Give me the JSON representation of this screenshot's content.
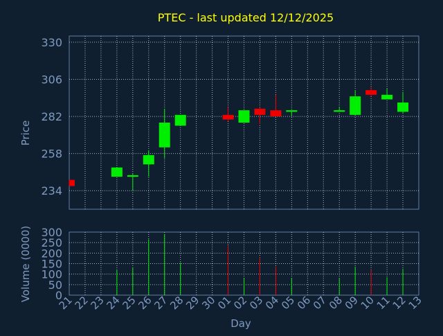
{
  "chart_data": {
    "type": "candlestick",
    "title": "PTEC - last updated 12/12/2025",
    "xlabel": "Day",
    "colors": {
      "background": "#0f1f30",
      "frame": "#5f7fa6",
      "axis_text": "#7f9ac0",
      "title": "#ffff00",
      "grid": "#cfdcea",
      "up": "#00ee00",
      "down": "#ee0000"
    },
    "price_panel": {
      "ylabel": "Price",
      "ylim": [
        222,
        334
      ],
      "yticks": [
        234,
        258,
        282,
        306,
        330
      ]
    },
    "volume_panel": {
      "ylabel": "Volume (0000)",
      "ylim": [
        0,
        300
      ],
      "yticks": [
        0,
        50,
        100,
        150,
        200,
        250,
        300
      ]
    },
    "days": [
      "21",
      "22",
      "23",
      "24",
      "25",
      "26",
      "27",
      "28",
      "29",
      "30",
      "01",
      "02",
      "03",
      "04",
      "05",
      "06",
      "07",
      "08",
      "09",
      "10",
      "11",
      "12",
      "13"
    ],
    "candles": [
      {
        "day": "21",
        "open": 241,
        "high": 241,
        "low": 237,
        "close": 237,
        "volume": 0,
        "dir": "down"
      },
      {
        "day": "24",
        "open": 243,
        "high": 249,
        "low": 243,
        "close": 249,
        "volume": 120,
        "dir": "up"
      },
      {
        "day": "25",
        "open": 243,
        "high": 245,
        "low": 234,
        "close": 244,
        "volume": 130,
        "dir": "up"
      },
      {
        "day": "26",
        "open": 251,
        "high": 260,
        "low": 243,
        "close": 257,
        "volume": 265,
        "dir": "up"
      },
      {
        "day": "27",
        "open": 262,
        "high": 287,
        "low": 255,
        "close": 278,
        "volume": 290,
        "dir": "up"
      },
      {
        "day": "28",
        "open": 276,
        "high": 283,
        "low": 276,
        "close": 283,
        "volume": 155,
        "dir": "up"
      },
      {
        "day": "01",
        "open": 283,
        "high": 288,
        "low": 279,
        "close": 280,
        "volume": 235,
        "dir": "down"
      },
      {
        "day": "02",
        "open": 278,
        "high": 286,
        "low": 278,
        "close": 286,
        "volume": 80,
        "dir": "up"
      },
      {
        "day": "03",
        "open": 287,
        "high": 288,
        "low": 277,
        "close": 283,
        "volume": 180,
        "dir": "down"
      },
      {
        "day": "04",
        "open": 286,
        "high": 296,
        "low": 282,
        "close": 282,
        "volume": 135,
        "dir": "down"
      },
      {
        "day": "05",
        "open": 285,
        "high": 286,
        "low": 282,
        "close": 286,
        "volume": 80,
        "dir": "up"
      },
      {
        "day": "08",
        "open": 285,
        "high": 288,
        "low": 285,
        "close": 286,
        "volume": 80,
        "dir": "up"
      },
      {
        "day": "09",
        "open": 283,
        "high": 299,
        "low": 283,
        "close": 295,
        "volume": 135,
        "dir": "up"
      },
      {
        "day": "10",
        "open": 299,
        "high": 301,
        "low": 295,
        "close": 296,
        "volume": 120,
        "dir": "down"
      },
      {
        "day": "11",
        "open": 293,
        "high": 300,
        "low": 293,
        "close": 296,
        "volume": 85,
        "dir": "up"
      },
      {
        "day": "12",
        "open": 285,
        "high": 298,
        "low": 284,
        "close": 291,
        "volume": 125,
        "dir": "up"
      }
    ]
  }
}
